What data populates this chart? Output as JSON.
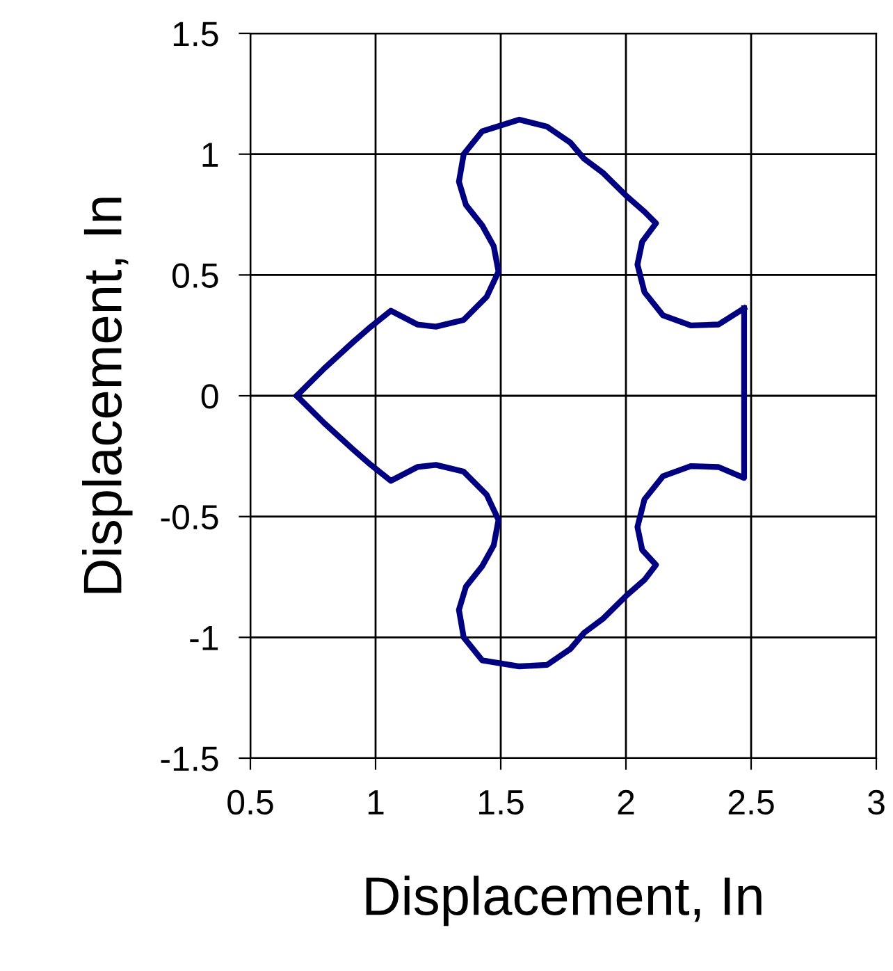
{
  "chart_data": {
    "type": "line",
    "xlabel": "Displacement, In",
    "ylabel": "Displacement, In",
    "series": [
      {
        "color": "#000080",
        "x": [
          0.685,
          0.796,
          0.907,
          0.981,
          1.061,
          1.167,
          1.241,
          1.352,
          1.444,
          1.491,
          1.472,
          1.426,
          1.361,
          1.333,
          1.352,
          1.426,
          1.574,
          1.685,
          1.778,
          1.833,
          1.907,
          2.0,
          2.074,
          2.12,
          2.065,
          2.046,
          2.074,
          2.148,
          2.259,
          2.37,
          2.472
        ],
        "values": [
          0.0,
          0.114,
          0.219,
          0.286,
          0.352,
          0.295,
          0.286,
          0.314,
          0.41,
          0.514,
          0.619,
          0.705,
          0.79,
          0.886,
          1.0,
          1.095,
          1.143,
          1.114,
          1.048,
          0.981,
          0.924,
          0.829,
          0.762,
          0.714,
          0.638,
          0.543,
          0.429,
          0.333,
          0.291,
          0.295,
          0.362
        ]
      },
      {
        "color": "#000080",
        "x": [
          2.472,
          2.472,
          2.37,
          2.259,
          2.148,
          2.074,
          2.046,
          2.065,
          2.12,
          2.074,
          2.0,
          1.907,
          1.833,
          1.778,
          1.685,
          1.574,
          1.426,
          1.352,
          1.333,
          1.361,
          1.426,
          1.472,
          1.491,
          1.444,
          1.352,
          1.241,
          1.167,
          1.061,
          0.981,
          0.907,
          0.796,
          0.685
        ],
        "values": [
          0.362,
          -0.34,
          -0.295,
          -0.291,
          -0.333,
          -0.429,
          -0.543,
          -0.638,
          -0.7,
          -0.762,
          -0.829,
          -0.924,
          -0.981,
          -1.048,
          -1.114,
          -1.12,
          -1.095,
          -1.0,
          -0.886,
          -0.79,
          -0.705,
          -0.619,
          -0.514,
          -0.41,
          -0.314,
          -0.286,
          -0.295,
          -0.352,
          -0.286,
          -0.219,
          -0.114,
          0.0
        ]
      }
    ],
    "xlim": [
      0.5,
      3
    ],
    "xticks": [
      0.5,
      1,
      1.5,
      2,
      2.5,
      3
    ],
    "ylim": [
      -1.5,
      1.5
    ],
    "yticks": [
      -1.5,
      -1,
      -0.5,
      0,
      0.5,
      1,
      1.5
    ],
    "grid": true,
    "marker": "none",
    "line_style": "solid"
  }
}
